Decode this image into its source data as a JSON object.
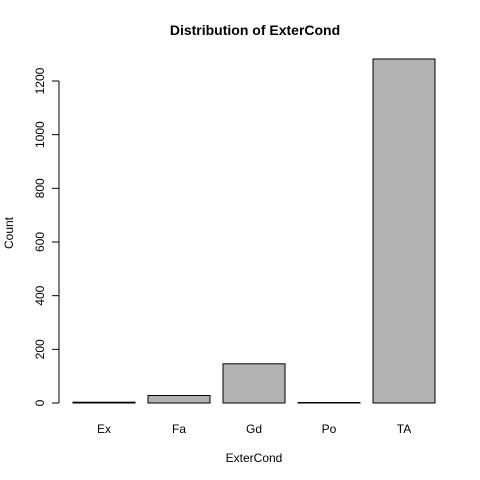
{
  "chart_data": {
    "type": "bar",
    "title": "Distribution of ExterCond",
    "xlabel": "ExterCond",
    "ylabel": "Count",
    "categories": [
      "Ex",
      "Fa",
      "Gd",
      "Po",
      "TA"
    ],
    "values": [
      3,
      28,
      146,
      1,
      1282
    ],
    "yticks": [
      0,
      200,
      400,
      600,
      800,
      1000,
      1200
    ],
    "ylim": [
      0,
      1282
    ],
    "bar_color": "#b3b3b3",
    "grid": false,
    "legend": "none"
  }
}
